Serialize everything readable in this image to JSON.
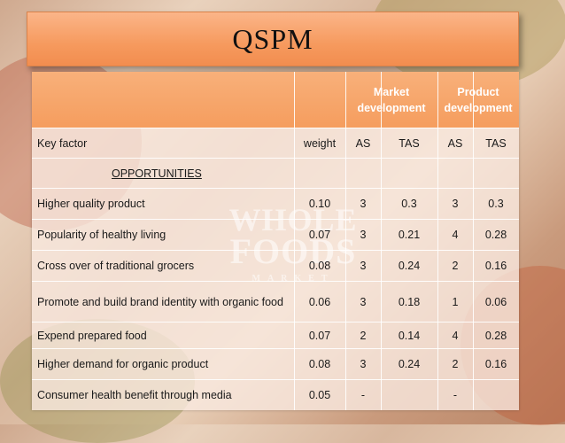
{
  "slide": {
    "title": "QSPM",
    "watermark": {
      "line1": "WHOLE",
      "line2": "FOODS",
      "line3": "MARKET"
    }
  },
  "table": {
    "groups": {
      "market": "Market development",
      "product": "Product development"
    },
    "columns": {
      "key_factor": "Key factor",
      "weight": "weight",
      "as1": "AS",
      "tas1": "TAS",
      "as2": "AS",
      "tas2": "TAS"
    },
    "section_label": "OPPORTUNITIES",
    "rows": [
      {
        "factor": "Higher quality product",
        "weight": "0.10",
        "as1": "3",
        "tas1": "0.3",
        "as2": "3",
        "tas2": "0.3"
      },
      {
        "factor": "Popularity of healthy living",
        "weight": "0.07",
        "as1": "3",
        "tas1": "0.21",
        "as2": "4",
        "tas2": "0.28"
      },
      {
        "factor": "Cross  over of traditional grocers",
        "weight": "0.08",
        "as1": "3",
        "tas1": "0.24",
        "as2": "2",
        "tas2": "0.16"
      },
      {
        "factor": "Promote and build brand identity with organic food",
        "weight": "0.06",
        "as1": "3",
        "tas1": "0.18",
        "as2": "1",
        "tas2": "0.06"
      },
      {
        "factor": "Expend prepared food",
        "weight": "0.07",
        "as1": "2",
        "tas1": "0.14",
        "as2": "4",
        "tas2": "0.28"
      },
      {
        "factor": "Higher demand for organic product",
        "weight": "0.08",
        "as1": "3",
        "tas1": "0.24",
        "as2": "2",
        "tas2": "0.16"
      },
      {
        "factor": "Consumer health benefit through media",
        "weight": "0.05",
        "as1": "-",
        "tas1": "",
        "as2": "-",
        "tas2": ""
      }
    ]
  }
}
